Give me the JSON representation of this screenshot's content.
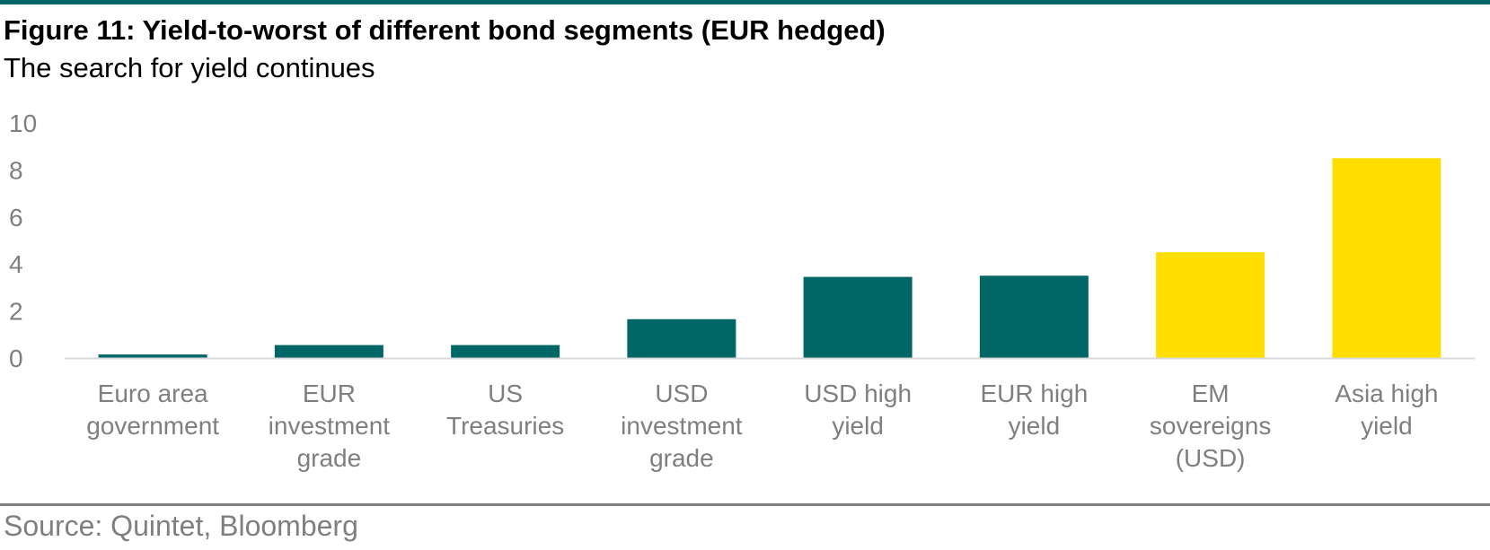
{
  "header": {
    "title": "Figure 11: Yield-to-worst of different bond segments (EUR hedged)",
    "subtitle": "The search for yield continues"
  },
  "footer": {
    "source": "Source: Quintet, Bloomberg"
  },
  "colors": {
    "rule": "#006666",
    "bottom_rule": "#7f7f7f",
    "teal": "#006666",
    "yellow": "#ffdd00",
    "axis_text": "#7f7f7f",
    "baseline": "#d9d9d9"
  },
  "chart_data": {
    "type": "bar",
    "categories": [
      [
        "Euro area",
        "government"
      ],
      [
        "EUR",
        "investment",
        "grade"
      ],
      [
        "US",
        "Treasuries"
      ],
      [
        "USD",
        "investment",
        "grade"
      ],
      [
        "USD high",
        "yield"
      ],
      [
        "EUR high",
        "yield"
      ],
      [
        "EM",
        "sovereigns",
        "(USD)"
      ],
      [
        "Asia high",
        "yield"
      ]
    ],
    "values": [
      0.15,
      0.55,
      0.55,
      1.65,
      3.45,
      3.5,
      4.5,
      8.5
    ],
    "bar_colors": [
      "teal",
      "teal",
      "teal",
      "teal",
      "teal",
      "teal",
      "yellow",
      "yellow"
    ],
    "ylim": [
      0,
      10
    ],
    "yticks": [
      0,
      2,
      4,
      6,
      8,
      10
    ],
    "grid": false,
    "legend": "none"
  }
}
